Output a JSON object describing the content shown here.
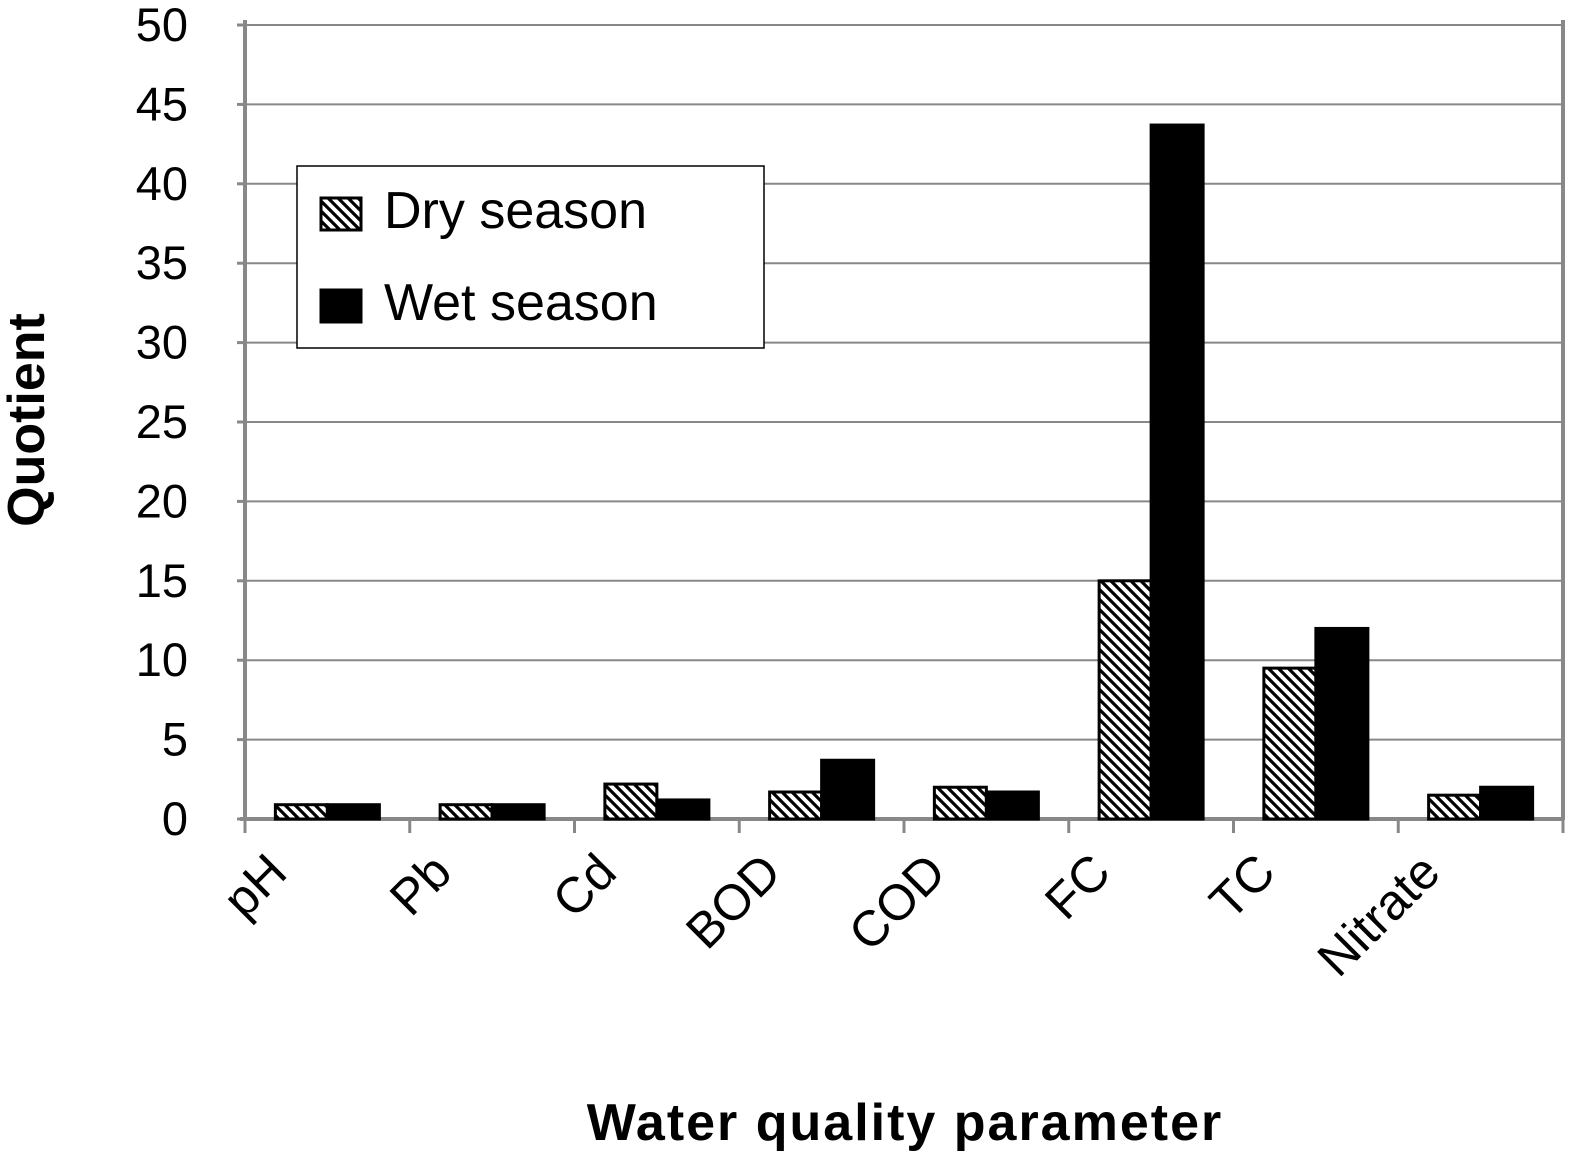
{
  "chart_data": {
    "type": "bar",
    "title": "",
    "xlabel": "Water quality parameter",
    "ylabel": "Quotient",
    "categories": [
      "pH",
      "Pb",
      "Cd",
      "BOD",
      "COD",
      "FC",
      "TC",
      "Nitrate"
    ],
    "series": [
      {
        "name": "Dry season",
        "values": [
          0.9,
          0.9,
          2.2,
          1.7,
          2.0,
          15.0,
          9.5,
          1.5
        ],
        "fill": "hatched"
      },
      {
        "name": "Wet season",
        "values": [
          0.9,
          0.9,
          1.2,
          3.7,
          1.7,
          43.7,
          12.0,
          2.0
        ],
        "fill": "#000000"
      }
    ],
    "ylim": [
      0,
      50
    ],
    "yticks": [
      0,
      5,
      10,
      15,
      20,
      25,
      30,
      35,
      40,
      45,
      50
    ],
    "grid": true,
    "legend_position": "upper-left"
  }
}
